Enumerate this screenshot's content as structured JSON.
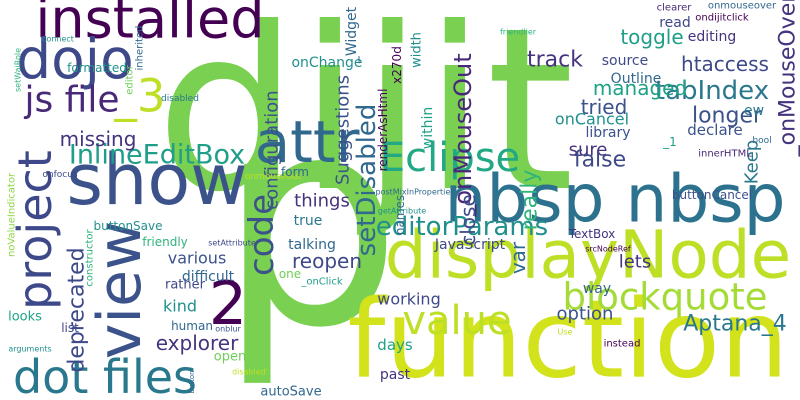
{
  "words": [
    "dijit",
    "p",
    "function",
    "displayNode",
    "nbsp nbsp",
    "show",
    "installed",
    "dojo",
    "_3",
    "view",
    "project",
    "js file",
    "attr",
    "Eclipse",
    "InlineEditBox",
    "2",
    "value",
    "dot files",
    "code",
    "deprecated",
    "blockquote",
    "editorParams",
    "setDisabled",
    "_onMouseOut",
    "_onMouseOver",
    "tabIndex",
    "longer",
    "htaccess",
    "Suggestions",
    "configuration",
    "onChange",
    "_Widget",
    "width",
    "within",
    "track",
    "toggle",
    "editing",
    "ondijitclick",
    "onmouseover",
    "clearer",
    "read",
    "managed",
    "tried",
    "sure",
    "really",
    "false",
    "Keep",
    "declare",
    "ew",
    "innerHTML",
    "bool",
    "onCancel",
    "_1",
    "Outline",
    "library",
    "source",
    "renderAsHtml",
    "x270d",
    "names",
    "postMixInProperties",
    "getAttribute",
    "friendlier",
    "connect",
    "formatted",
    "setWaiRole",
    "editor",
    "inherited",
    "onfocus",
    "noValueIndicator",
    "disabled",
    "missing",
    "buttonSave",
    "onmouseout",
    "setAttribute",
    "friendly",
    "various",
    "difficult",
    "constructor",
    "rather",
    "kind",
    "human",
    "explorer",
    "looks",
    "list",
    "arguments",
    "onblur",
    "open",
    "disabled'",
    "button",
    "var",
    "reopen",
    "things",
    "true",
    "talking",
    "one",
    "_onClick",
    "close",
    "form",
    "JavaScript",
    "lets",
    "TextBox",
    "srcNodeRef",
    "buttonCancel",
    "Aptana_4",
    "option",
    "way",
    "working",
    "days",
    "past",
    "autoSave",
    "Use",
    "instead"
  ]
}
